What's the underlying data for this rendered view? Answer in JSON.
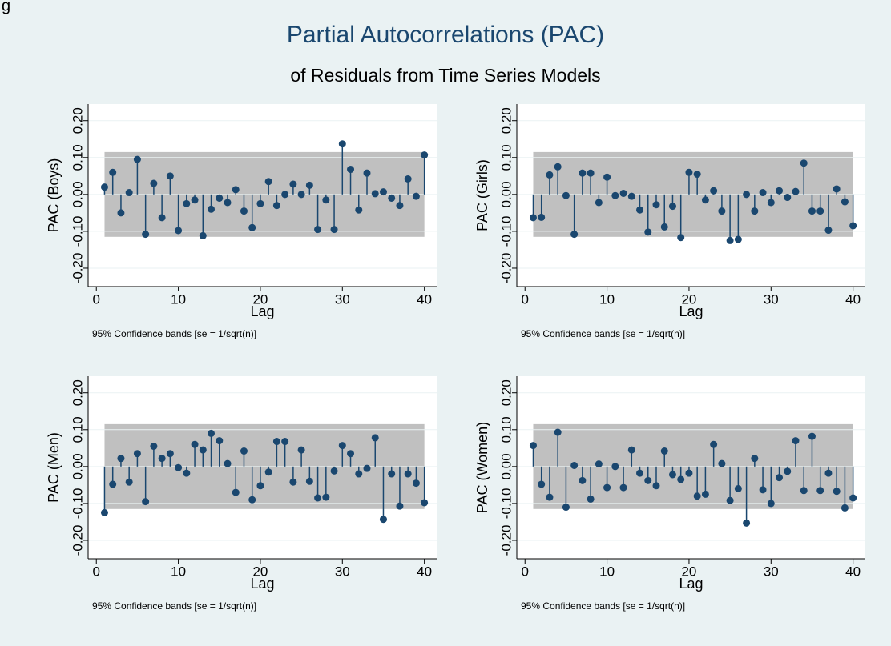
{
  "corner_text": "g",
  "title": "Partial Autocorrelations (PAC)",
  "subtitle": "of Residuals from Time Series Models",
  "chart_data": [
    {
      "type": "stem",
      "ylabel": "PAC (Boys)",
      "xlabel": "Lag",
      "note": "95% Confidence bands [se = 1/sqrt(n)]",
      "color": "#1a476f",
      "band": 0.115,
      "band_color": "#c0c0c0",
      "x": [
        1,
        2,
        3,
        4,
        5,
        6,
        7,
        8,
        9,
        10,
        11,
        12,
        13,
        14,
        15,
        16,
        17,
        18,
        19,
        20,
        21,
        22,
        23,
        24,
        25,
        26,
        27,
        28,
        29,
        30,
        31,
        32,
        33,
        34,
        35,
        36,
        37,
        38,
        39,
        40
      ],
      "values": [
        0.02,
        0.06,
        -0.05,
        0.005,
        0.095,
        -0.108,
        0.03,
        -0.063,
        0.05,
        -0.098,
        -0.025,
        -0.015,
        -0.112,
        -0.04,
        -0.01,
        -0.022,
        0.013,
        -0.045,
        -0.09,
        -0.025,
        0.035,
        -0.03,
        0.0,
        0.028,
        0.0,
        0.025,
        -0.095,
        -0.015,
        -0.095,
        0.137,
        0.068,
        -0.042,
        0.058,
        0.002,
        0.007,
        -0.01,
        -0.03,
        0.042,
        -0.005,
        0.107
      ],
      "xlim": [
        -1,
        41.5
      ],
      "xticks": [
        0,
        10,
        20,
        30,
        40
      ],
      "ylim": [
        -0.25,
        0.245
      ],
      "yticks": [
        {
          "value": -0.2,
          "label": "-0.20"
        },
        {
          "value": -0.1,
          "label": "-0.10"
        },
        {
          "value": 0,
          "label": "0.00"
        },
        {
          "value": 0.1,
          "label": "0.10"
        },
        {
          "value": 0.2,
          "label": "0.20"
        }
      ]
    },
    {
      "type": "stem",
      "ylabel": "PAC (Girls)",
      "xlabel": "Lag",
      "note": "95% Confidence bands [se = 1/sqrt(n)]",
      "color": "#1a476f",
      "band": 0.115,
      "band_color": "#c0c0c0",
      "x": [
        1,
        2,
        3,
        4,
        5,
        6,
        7,
        8,
        9,
        10,
        11,
        12,
        13,
        14,
        15,
        16,
        17,
        18,
        19,
        20,
        21,
        22,
        23,
        24,
        25,
        26,
        27,
        28,
        29,
        30,
        31,
        32,
        33,
        34,
        35,
        36,
        37,
        38,
        39,
        40
      ],
      "values": [
        -0.063,
        -0.062,
        0.053,
        0.075,
        -0.003,
        -0.108,
        0.058,
        0.058,
        -0.022,
        0.047,
        -0.003,
        0.003,
        -0.005,
        -0.042,
        -0.102,
        -0.028,
        -0.088,
        -0.032,
        -0.117,
        0.06,
        0.055,
        -0.015,
        0.01,
        -0.045,
        -0.125,
        -0.122,
        0.0,
        -0.045,
        0.005,
        -0.022,
        0.01,
        -0.008,
        0.008,
        0.085,
        -0.045,
        -0.045,
        -0.097,
        0.015,
        -0.02,
        -0.085
      ],
      "xlim": [
        -1,
        41.5
      ],
      "xticks": [
        0,
        10,
        20,
        30,
        40
      ],
      "ylim": [
        -0.25,
        0.245
      ],
      "yticks": [
        {
          "value": -0.2,
          "label": "-0.20"
        },
        {
          "value": -0.1,
          "label": "-0.10"
        },
        {
          "value": 0,
          "label": "0.00"
        },
        {
          "value": 0.1,
          "label": "0.10"
        },
        {
          "value": 0.2,
          "label": "0.20"
        }
      ]
    },
    {
      "type": "stem",
      "ylabel": "PAC (Men)",
      "xlabel": "Lag",
      "note": "95% Confidence bands [se = 1/sqrt(n)]",
      "color": "#1a476f",
      "band": 0.115,
      "band_color": "#c0c0c0",
      "x": [
        1,
        2,
        3,
        4,
        5,
        6,
        7,
        8,
        9,
        10,
        11,
        12,
        13,
        14,
        15,
        16,
        17,
        18,
        19,
        20,
        21,
        22,
        23,
        24,
        25,
        26,
        27,
        28,
        29,
        30,
        31,
        32,
        33,
        34,
        35,
        36,
        37,
        38,
        39,
        40
      ],
      "values": [
        -0.125,
        -0.048,
        0.022,
        -0.042,
        0.035,
        -0.095,
        0.055,
        0.022,
        0.035,
        -0.003,
        -0.018,
        0.06,
        0.045,
        0.09,
        0.07,
        0.008,
        -0.07,
        0.042,
        -0.09,
        -0.052,
        -0.015,
        0.068,
        0.068,
        -0.042,
        0.045,
        -0.04,
        -0.085,
        -0.083,
        -0.012,
        0.057,
        0.035,
        -0.02,
        -0.005,
        0.078,
        -0.143,
        -0.02,
        -0.107,
        -0.02,
        -0.045,
        -0.098
      ],
      "xlim": [
        -1,
        41.5
      ],
      "xticks": [
        0,
        10,
        20,
        30,
        40
      ],
      "ylim": [
        -0.25,
        0.245
      ],
      "yticks": [
        {
          "value": -0.2,
          "label": "-0.20"
        },
        {
          "value": -0.1,
          "label": "-0.10"
        },
        {
          "value": 0,
          "label": "0.00"
        },
        {
          "value": 0.1,
          "label": "0.10"
        },
        {
          "value": 0.2,
          "label": "0.20"
        }
      ]
    },
    {
      "type": "stem",
      "ylabel": "PAC (Women)",
      "xlabel": "Lag",
      "note": "95% Confidence bands [se = 1/sqrt(n)]",
      "color": "#1a476f",
      "band": 0.115,
      "band_color": "#c0c0c0",
      "x": [
        1,
        2,
        3,
        4,
        5,
        6,
        7,
        8,
        9,
        10,
        11,
        12,
        13,
        14,
        15,
        16,
        17,
        18,
        19,
        20,
        21,
        22,
        23,
        24,
        25,
        26,
        27,
        28,
        29,
        30,
        31,
        32,
        33,
        34,
        35,
        36,
        37,
        38,
        39,
        40
      ],
      "values": [
        0.057,
        -0.048,
        -0.083,
        0.093,
        -0.11,
        0.003,
        -0.038,
        -0.088,
        0.007,
        -0.057,
        0.0,
        -0.057,
        0.045,
        -0.018,
        -0.038,
        -0.052,
        0.042,
        -0.022,
        -0.035,
        -0.018,
        -0.08,
        -0.075,
        0.06,
        0.008,
        -0.092,
        -0.06,
        -0.153,
        0.022,
        -0.063,
        -0.1,
        -0.03,
        -0.013,
        0.07,
        -0.065,
        0.082,
        -0.065,
        -0.018,
        -0.067,
        -0.112,
        -0.085
      ],
      "xlim": [
        -1,
        41.5
      ],
      "xticks": [
        0,
        10,
        20,
        30,
        40
      ],
      "ylim": [
        -0.25,
        0.245
      ],
      "yticks": [
        {
          "value": -0.2,
          "label": "-0.20"
        },
        {
          "value": -0.1,
          "label": "-0.10"
        },
        {
          "value": 0,
          "label": "0.00"
        },
        {
          "value": 0.1,
          "label": "0.10"
        },
        {
          "value": 0.2,
          "label": "0.20"
        }
      ]
    }
  ]
}
